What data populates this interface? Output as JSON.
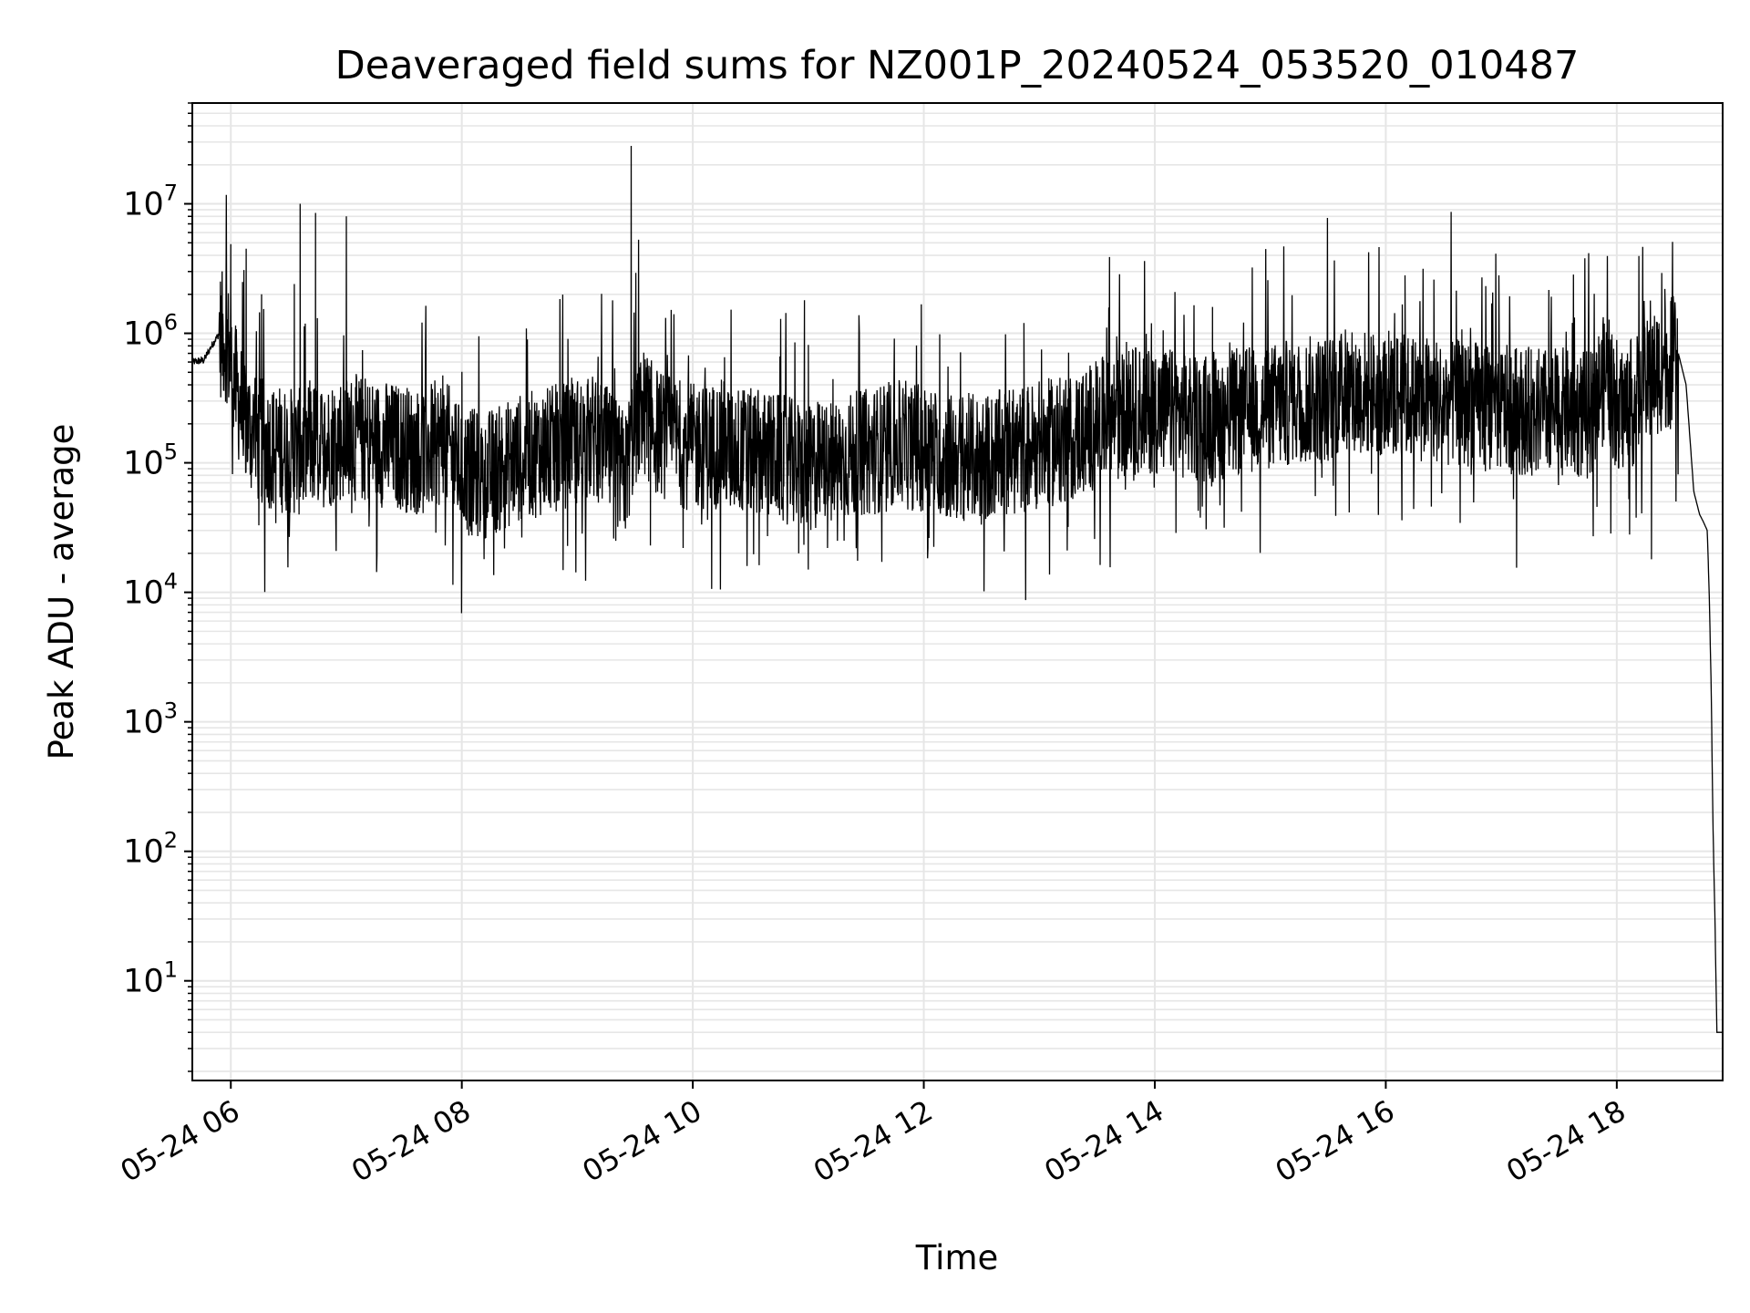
{
  "chart_data": {
    "type": "line",
    "title": "Deaveraged field sums for NZ001P_20240524_053520_010487",
    "xlabel": "Time",
    "ylabel": "Peak ADU - average",
    "yscale": "log",
    "grid": true,
    "legend": "none",
    "xlim": [
      "05-24 05:40",
      "05-24 18:55"
    ],
    "ylim": [
      1.7,
      60000000
    ],
    "x_ticks": [
      {
        "t": "05-24 06:00",
        "label": "05-24 06"
      },
      {
        "t": "05-24 08:00",
        "label": "05-24 08"
      },
      {
        "t": "05-24 10:00",
        "label": "05-24 10"
      },
      {
        "t": "05-24 12:00",
        "label": "05-24 12"
      },
      {
        "t": "05-24 14:00",
        "label": "05-24 14"
      },
      {
        "t": "05-24 16:00",
        "label": "05-24 16"
      },
      {
        "t": "05-24 18:00",
        "label": "05-24 18"
      }
    ],
    "y_ticks": [
      {
        "value": 10,
        "base": "10",
        "exp": "1"
      },
      {
        "value": 100,
        "base": "10",
        "exp": "2"
      },
      {
        "value": 1000,
        "base": "10",
        "exp": "3"
      },
      {
        "value": 10000,
        "base": "10",
        "exp": "4"
      },
      {
        "value": 100000,
        "base": "10",
        "exp": "5"
      },
      {
        "value": 1000000,
        "base": "10",
        "exp": "6"
      },
      {
        "value": 10000000,
        "base": "10",
        "exp": "7"
      }
    ],
    "line_color": "#000000",
    "grid_color": "#e6e6e6",
    "series": [
      {
        "x": [
          "05-24 05:40",
          "05-24 05:46",
          "05-24 05:50",
          "05-24 05:54",
          "05-24 05:58",
          "05-24 06:02",
          "05-24 06:06",
          "05-24 06:10",
          "05-24 06:14",
          "05-24 06:18",
          "05-24 06:24",
          "05-24 06:30",
          "05-24 06:36",
          "05-24 06:42",
          "05-24 06:48",
          "05-24 06:54",
          "05-24 07:00",
          "05-24 07:10",
          "05-24 07:20",
          "05-24 07:30",
          "05-24 07:40",
          "05-24 07:50",
          "05-24 08:00",
          "05-24 08:10",
          "05-24 08:20",
          "05-24 08:30",
          "05-24 08:40",
          "05-24 08:50",
          "05-24 09:00",
          "05-24 09:10",
          "05-24 09:20",
          "05-24 09:25",
          "05-24 09:30",
          "05-24 09:35",
          "05-24 09:40",
          "05-24 09:50",
          "05-24 10:00",
          "05-24 10:15",
          "05-24 10:30",
          "05-24 10:45",
          "05-24 11:00",
          "05-24 11:10",
          "05-24 11:20",
          "05-24 11:30",
          "05-24 11:45",
          "05-24 12:00",
          "05-24 12:15",
          "05-24 12:30",
          "05-24 12:45",
          "05-24 13:00",
          "05-24 13:15",
          "05-24 13:30",
          "05-24 13:45",
          "05-24 14:00",
          "05-24 14:15",
          "05-24 14:30",
          "05-24 14:45",
          "05-24 15:00",
          "05-24 15:15",
          "05-24 15:30",
          "05-24 15:45",
          "05-24 16:00",
          "05-24 16:15",
          "05-24 16:30",
          "05-24 16:45",
          "05-24 17:00",
          "05-24 17:15",
          "05-24 17:30",
          "05-24 17:45",
          "05-24 17:55",
          "05-24 18:00",
          "05-24 18:10",
          "05-24 18:20",
          "05-24 18:28",
          "05-24 18:32",
          "05-24 18:36",
          "05-24 18:40",
          "05-24 18:43",
          "05-24 18:45",
          "05-24 18:47",
          "05-24 18:48",
          "05-24 18:49",
          "05-24 18:50",
          "05-24 18:51",
          "05-24 18:52",
          "05-24 18:53",
          "05-24 18:54"
        ],
        "y": [
          600000,
          620000,
          800000,
          1000000,
          900000,
          400000,
          250000,
          180000,
          150000,
          140000,
          130000,
          125000,
          120000,
          140000,
          130000,
          150000,
          160000,
          150000,
          140000,
          130000,
          120000,
          150000,
          90000,
          80000,
          90000,
          110000,
          120000,
          130000,
          150000,
          160000,
          100000,
          80000,
          200000,
          250000,
          180000,
          150000,
          130000,
          140000,
          120000,
          110000,
          90000,
          100000,
          110000,
          120000,
          140000,
          130000,
          110000,
          110000,
          120000,
          140000,
          150000,
          200000,
          250000,
          260000,
          230000,
          220000,
          250000,
          270000,
          300000,
          320000,
          350000,
          340000,
          320000,
          300000,
          280000,
          260000,
          250000,
          250000,
          230000,
          500000,
          250000,
          300000,
          500000,
          600000,
          700000,
          400000,
          60000,
          40000,
          35000,
          30000,
          10000,
          2000,
          150,
          30,
          4,
          4,
          4
        ],
        "spikes": [
          {
            "x": "05-24 06:00",
            "y": 2200000
          },
          {
            "x": "05-24 06:08",
            "y": 4500000
          },
          {
            "x": "05-24 06:16",
            "y": 2000000
          },
          {
            "x": "05-24 06:33",
            "y": 2400000
          },
          {
            "x": "05-24 06:36",
            "y": 10000000
          },
          {
            "x": "05-24 06:44",
            "y": 8500000
          },
          {
            "x": "05-24 07:00",
            "y": 8000000
          },
          {
            "x": "05-24 09:28",
            "y": 28000000
          },
          {
            "x": "05-24 10:58",
            "y": 1800000
          },
          {
            "x": "05-24 12:52",
            "y": 1200000
          },
          {
            "x": "05-24 14:30",
            "y": 1600000
          },
          {
            "x": "05-24 16:10",
            "y": 2800000
          },
          {
            "x": "05-24 16:25",
            "y": 2600000
          },
          {
            "x": "05-24 16:55",
            "y": 1700000
          },
          {
            "x": "05-24 18:25",
            "y": 2200000
          }
        ],
        "dips": [
          {
            "x": "05-24 06:16",
            "y": 55000
          },
          {
            "x": "05-24 08:00",
            "y": 30000
          },
          {
            "x": "05-24 09:20",
            "y": 25000
          },
          {
            "x": "05-24 09:38",
            "y": 23000
          },
          {
            "x": "05-24 09:55",
            "y": 22000
          },
          {
            "x": "05-24 10:55",
            "y": 20000
          },
          {
            "x": "05-24 11:00",
            "y": 15000
          },
          {
            "x": "05-24 11:10",
            "y": 22000
          },
          {
            "x": "05-24 13:15",
            "y": 32000
          },
          {
            "x": "05-24 18:18",
            "y": 18000
          }
        ]
      }
    ]
  }
}
